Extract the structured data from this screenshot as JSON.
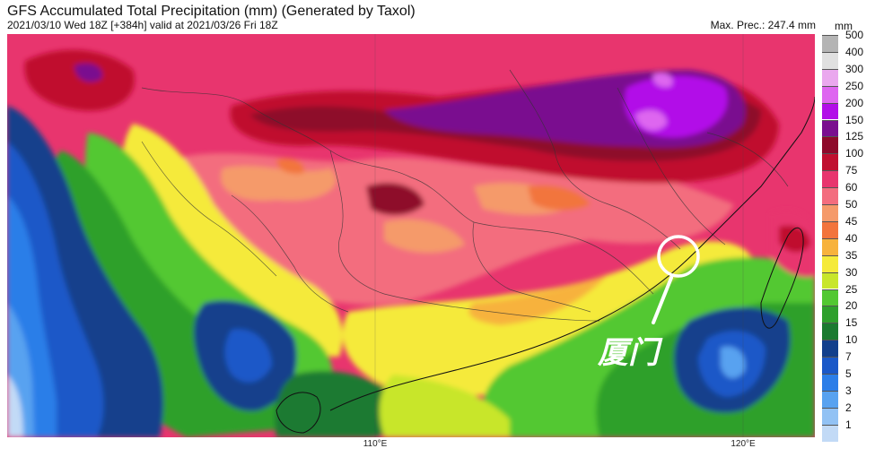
{
  "header": {
    "title": "GFS Accumulated Total Precipitation (mm) (Generated by Taxol)",
    "subtitle": "2021/03/10 Wed 18Z [+384h] valid at 2021/03/26 Fri 18Z",
    "max_prec": "Max. Prec.: 247.4 mm"
  },
  "map": {
    "axis_ticks": [
      "110°E",
      "120°E"
    ],
    "annotation_label": "厦门"
  },
  "legend": {
    "unit": "mm",
    "levels": [
      {
        "label": "500",
        "color": "#b4b4b4"
      },
      {
        "label": "400",
        "color": "#e0e0e0"
      },
      {
        "label": "300",
        "color": "#eaa8ee"
      },
      {
        "label": "250",
        "color": "#de66f0"
      },
      {
        "label": "200",
        "color": "#b20ee8"
      },
      {
        "label": "150",
        "color": "#7a0f8f"
      },
      {
        "label": "125",
        "color": "#8e0a2a"
      },
      {
        "label": "100",
        "color": "#c0102f"
      },
      {
        "label": "75",
        "color": "#e8356e"
      },
      {
        "label": "60",
        "color": "#f36d7e"
      },
      {
        "label": "50",
        "color": "#f59a6a"
      },
      {
        "label": "45",
        "color": "#f2743c"
      },
      {
        "label": "40",
        "color": "#f7b23c"
      },
      {
        "label": "35",
        "color": "#f5ea3a"
      },
      {
        "label": "30",
        "color": "#c8e62c"
      },
      {
        "label": "25",
        "color": "#52c832"
      },
      {
        "label": "20",
        "color": "#2ea02c"
      },
      {
        "label": "15",
        "color": "#1b7a30"
      },
      {
        "label": "10",
        "color": "#123f8c"
      },
      {
        "label": "7",
        "color": "#1a58c8"
      },
      {
        "label": "5",
        "color": "#2c7ee8"
      },
      {
        "label": "3",
        "color": "#58a2f0"
      },
      {
        "label": "2",
        "color": "#92c2f4"
      },
      {
        "label": "1",
        "color": "#c2daf6"
      }
    ]
  }
}
